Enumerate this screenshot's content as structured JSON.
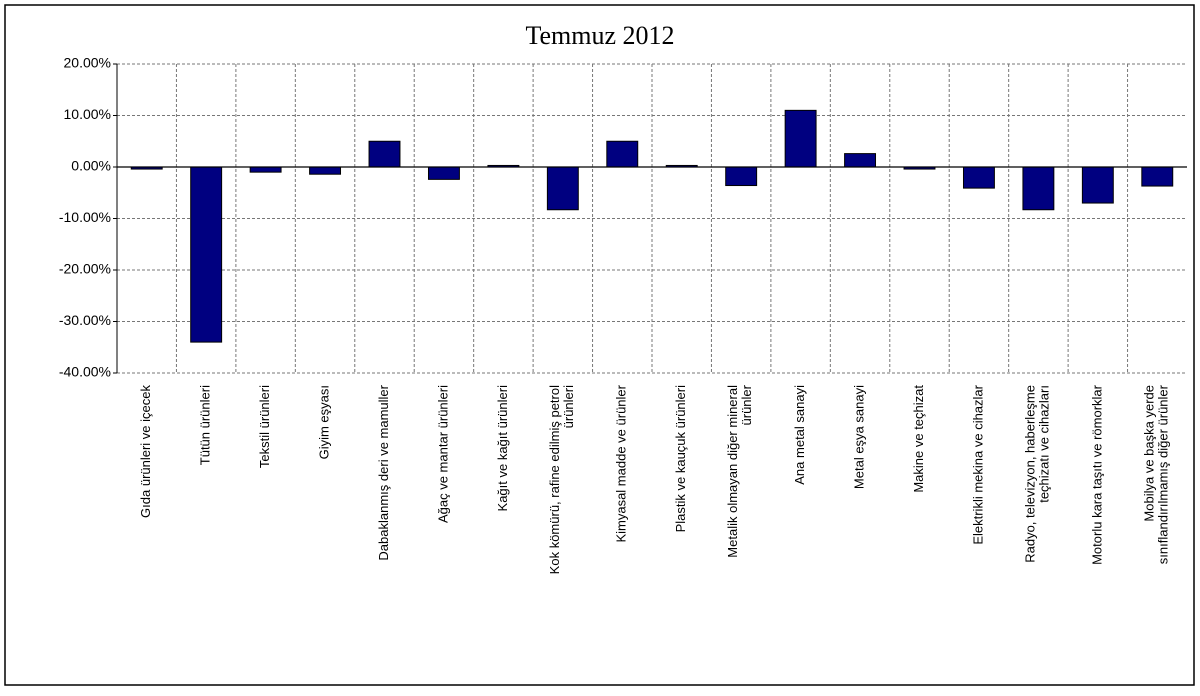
{
  "chart_data": {
    "type": "bar",
    "title": "Temmuz 2012",
    "categories": [
      "Gıda ürünleri ve içecek",
      "Tütün ürünleri",
      "Tekstil ürünleri",
      "Giyim eşyası",
      "Dabaklanmış deri ve mamuller",
      "Ağaç ve mantar ürünleri",
      "Kağıt ve kağıt ürünleri",
      "Kok kömürü, rafine edilmiş petrol ürünleri",
      "Kimyasal madde ve ürünler",
      "Plastik ve kauçuk ürünleri",
      "Metalik olmayan diğer mineral ürünler",
      "Ana metal sanayi",
      "Metal eşya sanayi",
      "Makine ve teçhizat",
      "Elektrikli mekina ve cihazlar",
      "Radyo, televizyon, haberleşme teçhizatı ve cihazları",
      "Motorlu kara taşıtı ve römorklar",
      "Mobilya ve başka yerde sınıflandırılmamış diğer ürünler"
    ],
    "values": [
      -0.4,
      -34.0,
      -1.0,
      -1.4,
      5.0,
      -2.4,
      0.3,
      -8.3,
      5.0,
      0.3,
      -3.6,
      11.0,
      2.6,
      -0.4,
      -4.1,
      -8.3,
      -7.0,
      -3.7
    ],
    "color": "#000080",
    "ylim": [
      -40,
      20
    ],
    "yticks": [
      {
        "value": -40,
        "label": "-40.00%"
      },
      {
        "value": -30,
        "label": "-30.00%"
      },
      {
        "value": -20,
        "label": "-20.00%"
      },
      {
        "value": -10,
        "label": "-10.00%"
      },
      {
        "value": 0,
        "label": "0.00%"
      },
      {
        "value": 10,
        "label": "10.00%"
      },
      {
        "value": 20,
        "label": "20.00%"
      }
    ],
    "grid": true
  }
}
